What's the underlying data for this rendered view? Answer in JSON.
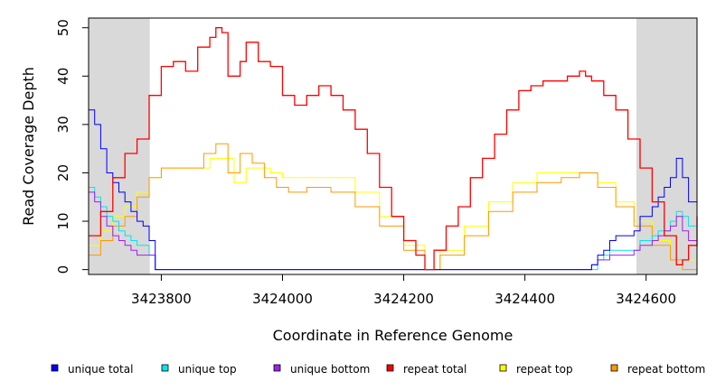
{
  "chart_data": {
    "type": "line",
    "title": "",
    "xlabel": "Coordinate in Reference Genome",
    "ylabel": "Read Coverage Depth",
    "xlim": [
      3423680,
      3424684
    ],
    "ylim": [
      -1,
      52
    ],
    "x_ticks": [
      3423800,
      3424000,
      3424200,
      3424400,
      3424600
    ],
    "x_tick_labels": [
      "3423800",
      "3424000",
      "3424200",
      "3424400",
      "3424600"
    ],
    "y_ticks": [
      0,
      10,
      20,
      30,
      40,
      50
    ],
    "y_tick_labels": [
      "0",
      "10",
      "20",
      "30",
      "40",
      "50"
    ],
    "shaded_regions": [
      [
        3423680,
        3423781
      ],
      [
        3424584,
        3424684
      ]
    ],
    "grid": false,
    "legend_position": "bottom",
    "series": [
      {
        "name": "unique total",
        "color": "#0000ff",
        "x": [
          3423680,
          3423690,
          3423700,
          3423710,
          3423720,
          3423730,
          3423740,
          3423750,
          3423760,
          3423770,
          3423780,
          3423790,
          3423800,
          3424500,
          3424510,
          3424520,
          3424530,
          3424540,
          3424550,
          3424560,
          3424570,
          3424580,
          3424590,
          3424600,
          3424610,
          3424620,
          3424630,
          3424640,
          3424650,
          3424660,
          3424670,
          3424684
        ],
        "values": [
          33,
          30,
          25,
          20,
          18,
          16,
          14,
          12,
          10,
          9,
          6,
          0,
          0,
          0,
          1,
          3,
          4,
          6,
          7,
          7,
          7,
          8,
          11,
          11,
          13,
          15,
          17,
          19,
          23,
          19,
          14,
          13
        ]
      },
      {
        "name": "unique top",
        "color": "#00e5ee",
        "x": [
          3423680,
          3423690,
          3423700,
          3423710,
          3423720,
          3423730,
          3423740,
          3423750,
          3423760,
          3423770,
          3423780,
          3423790,
          3423800,
          3424510,
          3424520,
          3424530,
          3424540,
          3424560,
          3424580,
          3424590,
          3424600,
          3424610,
          3424620,
          3424630,
          3424640,
          3424650,
          3424660,
          3424670,
          3424684
        ],
        "values": [
          17,
          15,
          13,
          11,
          10,
          8,
          7,
          6,
          5,
          5,
          3,
          0,
          0,
          0,
          2,
          3,
          4,
          4,
          4,
          6,
          6,
          7,
          8,
          8,
          10,
          12,
          11,
          9,
          8
        ]
      },
      {
        "name": "unique bottom",
        "color": "#a020f0",
        "x": [
          3423680,
          3423690,
          3423700,
          3423710,
          3423720,
          3423730,
          3423740,
          3423750,
          3423760,
          3423770,
          3423780,
          3423790,
          3423800,
          3424500,
          3424510,
          3424520,
          3424530,
          3424540,
          3424560,
          3424580,
          3424590,
          3424600,
          3424610,
          3424620,
          3424630,
          3424640,
          3424650,
          3424660,
          3424670,
          3424684
        ],
        "values": [
          16,
          14,
          11,
          9,
          7,
          6,
          5,
          4,
          3,
          3,
          3,
          0,
          0,
          0,
          1,
          2,
          2,
          3,
          3,
          4,
          5,
          5,
          6,
          7,
          8,
          9,
          11,
          8,
          6,
          5
        ]
      },
      {
        "name": "repeat total",
        "color": "#ff0000",
        "x": [
          3423680,
          3423700,
          3423720,
          3423740,
          3423760,
          3423780,
          3423800,
          3423820,
          3423840,
          3423860,
          3423880,
          3423890,
          3423900,
          3423910,
          3423920,
          3423930,
          3423940,
          3423960,
          3423980,
          3424000,
          3424020,
          3424040,
          3424060,
          3424080,
          3424100,
          3424120,
          3424140,
          3424160,
          3424180,
          3424200,
          3424220,
          3424235,
          3424250,
          3424270,
          3424290,
          3424310,
          3424330,
          3424350,
          3424370,
          3424390,
          3424410,
          3424430,
          3424450,
          3424470,
          3424490,
          3424500,
          3424510,
          3424530,
          3424550,
          3424570,
          3424590,
          3424610,
          3424630,
          3424650,
          3424660,
          3424670,
          3424684
        ],
        "values": [
          7,
          12,
          19,
          24,
          27,
          36,
          42,
          43,
          41,
          46,
          48,
          50,
          49,
          40,
          40,
          43,
          47,
          43,
          42,
          36,
          34,
          36,
          38,
          36,
          33,
          29,
          24,
          17,
          11,
          6,
          3,
          0,
          4,
          9,
          13,
          19,
          23,
          28,
          33,
          37,
          38,
          39,
          39,
          40,
          41,
          40,
          39,
          36,
          33,
          27,
          21,
          14,
          7,
          1,
          2,
          5,
          11
        ]
      },
      {
        "name": "repeat top",
        "color": "#ffff00",
        "x": [
          3423680,
          3423700,
          3423720,
          3423740,
          3423760,
          3423780,
          3423800,
          3423840,
          3423880,
          3423900,
          3423920,
          3423940,
          3423960,
          3423980,
          3424000,
          3424040,
          3424080,
          3424120,
          3424160,
          3424200,
          3424235,
          3424260,
          3424300,
          3424340,
          3424380,
          3424420,
          3424460,
          3424490,
          3424520,
          3424550,
          3424580,
          3424610,
          3424640,
          3424660,
          3424684
        ],
        "values": [
          5,
          8,
          11,
          13,
          16,
          19,
          21,
          21,
          23,
          23,
          18,
          21,
          21,
          20,
          19,
          19,
          19,
          16,
          11,
          5,
          0,
          4,
          9,
          14,
          18,
          20,
          20,
          20,
          18,
          14,
          10,
          6,
          2,
          2,
          5
        ]
      },
      {
        "name": "repeat bottom",
        "color": "#ff9900",
        "x": [
          3423680,
          3423700,
          3423720,
          3423740,
          3423760,
          3423780,
          3423800,
          3423840,
          3423870,
          3423890,
          3423910,
          3423930,
          3423950,
          3423970,
          3423990,
          3424010,
          3424040,
          3424080,
          3424120,
          3424160,
          3424200,
          3424235,
          3424260,
          3424300,
          3424340,
          3424380,
          3424420,
          3424460,
          3424490,
          3424520,
          3424550,
          3424580,
          3424610,
          3424640,
          3424660,
          3424684
        ],
        "values": [
          3,
          6,
          9,
          11,
          15,
          19,
          21,
          21,
          24,
          26,
          20,
          24,
          22,
          19,
          17,
          16,
          17,
          16,
          13,
          9,
          4,
          0,
          3,
          7,
          12,
          16,
          18,
          19,
          20,
          17,
          13,
          9,
          5,
          2,
          0,
          5
        ]
      }
    ]
  }
}
